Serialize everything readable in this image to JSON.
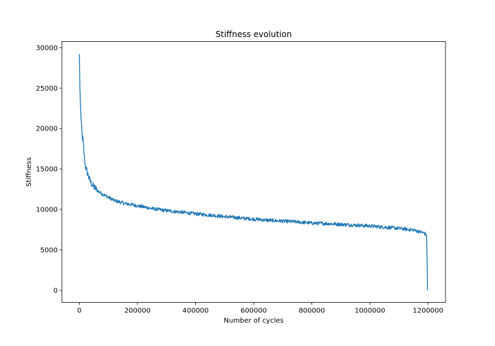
{
  "chart_data": {
    "type": "line",
    "title": "Stiffness evolution",
    "xlabel": "Number of cycles",
    "ylabel": "Stiffness",
    "xlim": [
      -60000,
      1260000
    ],
    "ylim": [
      -1500,
      30750
    ],
    "xticks": [
      0,
      200000,
      400000,
      600000,
      800000,
      1000000,
      1200000
    ],
    "yticks": [
      0,
      5000,
      10000,
      15000,
      20000,
      25000,
      30000
    ],
    "grid": false,
    "series": [
      {
        "color": "#1f77b4",
        "x": [
          0,
          2000,
          5000,
          8000,
          10000,
          13000,
          16000,
          20000,
          25000,
          30000,
          35000,
          40000,
          45000,
          50000,
          60000,
          70000,
          80000,
          90000,
          100000,
          120000,
          140000,
          160000,
          180000,
          200000,
          250000,
          300000,
          350000,
          400000,
          450000,
          500000,
          550000,
          600000,
          650000,
          700000,
          750000,
          800000,
          850000,
          900000,
          950000,
          1000000,
          1050000,
          1100000,
          1150000,
          1180000,
          1190000,
          1195000,
          1197000,
          1198000
        ],
        "y": [
          29200,
          25000,
          22000,
          20000,
          19000,
          18500,
          17000,
          15500,
          14800,
          14300,
          13700,
          13300,
          13000,
          12800,
          12400,
          12100,
          11900,
          11700,
          11500,
          11100,
          10900,
          10700,
          10600,
          10450,
          10100,
          9850,
          9650,
          9450,
          9300,
          9100,
          8950,
          8800,
          8650,
          8550,
          8450,
          8300,
          8250,
          8150,
          8050,
          7950,
          7800,
          7650,
          7450,
          7150,
          7000,
          6800,
          3000,
          0
        ]
      }
    ]
  }
}
